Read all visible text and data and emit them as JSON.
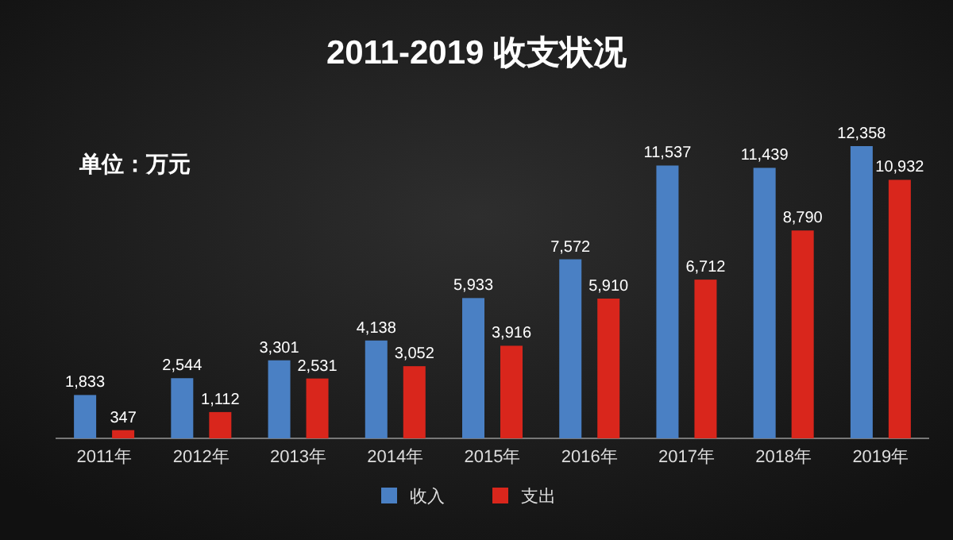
{
  "chart_data": {
    "type": "bar",
    "title": "2011-2019 收支状况",
    "annotations": [
      "单位：万元"
    ],
    "categories": [
      "2011年",
      "2012年",
      "2013年",
      "2014年",
      "2015年",
      "2016年",
      "2017年",
      "2018年",
      "2019年"
    ],
    "series": [
      {
        "name": "收入",
        "color": "#4a80c4",
        "values": [
          1833,
          2544,
          3301,
          4138,
          5933,
          7572,
          11537,
          11439,
          12358
        ],
        "value_labels": [
          "1,833",
          "2,544",
          "3,301",
          "4,138",
          "5,933",
          "7,572",
          "11,537",
          "11,439",
          "12,358"
        ]
      },
      {
        "name": "支出",
        "color": "#d9261c",
        "values": [
          347,
          1112,
          2531,
          3052,
          3916,
          5910,
          6712,
          8790,
          10932
        ],
        "value_labels": [
          "347",
          "1,112",
          "2,531",
          "3,052",
          "3,916",
          "5,910",
          "6,712",
          "8,790",
          "10,932"
        ]
      }
    ],
    "legend": "bottom",
    "grid": false
  }
}
